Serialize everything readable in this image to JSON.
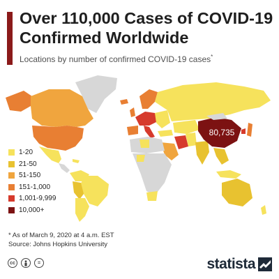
{
  "header": {
    "title_line1": "Over 110,000 Cases of COVID-19",
    "title_line2": "Confirmed Worldwide",
    "subtitle": "Locations by number of confirmed COVID-19 cases",
    "subtitle_mark": "*"
  },
  "map": {
    "china_label": "80,735",
    "colors": {
      "no_data": "#d7d7d7",
      "c1": "#f6e25c",
      "c2": "#e8c230",
      "c3": "#f0a53e",
      "c4": "#e87f33",
      "c5": "#d63a2c",
      "c6": "#7c1212"
    }
  },
  "legend": {
    "items": [
      {
        "label": "1-20",
        "color": "#f6e25c"
      },
      {
        "label": "21-50",
        "color": "#e8c230"
      },
      {
        "label": "51-150",
        "color": "#f0a53e"
      },
      {
        "label": "151-1,000",
        "color": "#e87f33"
      },
      {
        "label": "1,001-9,999",
        "color": "#d63a2c"
      },
      {
        "label": "10,000+",
        "color": "#7c1212"
      }
    ]
  },
  "footer": {
    "note": "* As of March 9, 2020 at 4 a.m. EST",
    "source": "Source: Johns Hopkins University",
    "brand": "statista",
    "license_icons": [
      "cc",
      "person",
      "="
    ]
  },
  "accent_color": "#8b1a1a"
}
